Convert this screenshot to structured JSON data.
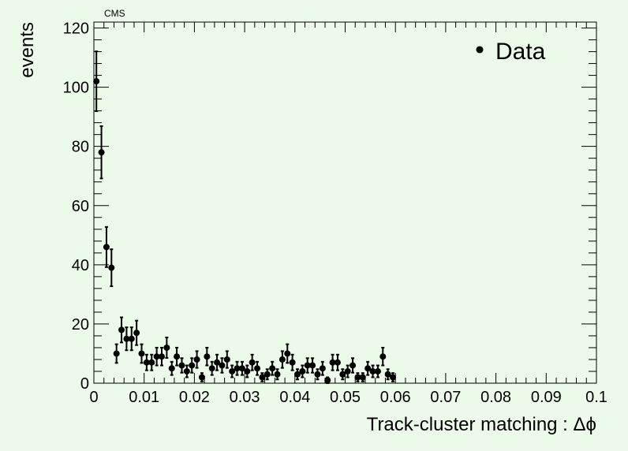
{
  "chart_data": {
    "type": "scatter",
    "experiment_label": "CMS",
    "title": "",
    "xlabel": "Track-cluster matching : Δϕ",
    "ylabel": "events",
    "xlim": [
      0,
      0.1
    ],
    "ylim": [
      0,
      122
    ],
    "x_ticks": [
      0,
      0.01,
      0.02,
      0.03,
      0.04,
      0.05,
      0.06,
      0.07,
      0.08,
      0.09,
      0.1
    ],
    "x_tick_labels": [
      "0",
      "0.01",
      "0.02",
      "0.03",
      "0.04",
      "0.05",
      "0.06",
      "0.07",
      "0.08",
      "0.09",
      "0.1"
    ],
    "y_ticks": [
      0,
      20,
      40,
      60,
      80,
      100,
      120
    ],
    "y_tick_labels": [
      "0",
      "20",
      "40",
      "60",
      "80",
      "100",
      "120"
    ],
    "grid": false,
    "legend": {
      "position": "top-right",
      "entries": [
        "Data"
      ]
    },
    "marker_color": "#000000",
    "background_color": "#ecfbe9",
    "series": [
      {
        "name": "Data",
        "x": [
          0.0005,
          0.0015,
          0.0025,
          0.0035,
          0.0045,
          0.0055,
          0.0065,
          0.0075,
          0.0085,
          0.0095,
          0.0105,
          0.0115,
          0.0125,
          0.0135,
          0.0145,
          0.0155,
          0.0165,
          0.0175,
          0.0185,
          0.0195,
          0.0205,
          0.0215,
          0.0225,
          0.0235,
          0.0245,
          0.0255,
          0.0265,
          0.0275,
          0.0285,
          0.0295,
          0.0305,
          0.0315,
          0.0325,
          0.0335,
          0.0345,
          0.0355,
          0.0365,
          0.0375,
          0.0385,
          0.0395,
          0.0405,
          0.0415,
          0.0425,
          0.0435,
          0.0445,
          0.0455,
          0.0465,
          0.0475,
          0.0485,
          0.0495,
          0.0505,
          0.0515,
          0.0525,
          0.0535,
          0.0545,
          0.0555,
          0.0565,
          0.0575,
          0.0585,
          0.0595
        ],
        "values": [
          102,
          78,
          46,
          39,
          10,
          18,
          15,
          15,
          17,
          10,
          7,
          7,
          9,
          9,
          12,
          5,
          9,
          6,
          4,
          6,
          8,
          2,
          9,
          5,
          7,
          6,
          8,
          4,
          5,
          5,
          4,
          7,
          5,
          2,
          3,
          5,
          3,
          8,
          10,
          7,
          3,
          4,
          6,
          6,
          3,
          5,
          1,
          7,
          7,
          3,
          4,
          6,
          2,
          2,
          5,
          4,
          4,
          9,
          3,
          2
        ]
      }
    ]
  }
}
